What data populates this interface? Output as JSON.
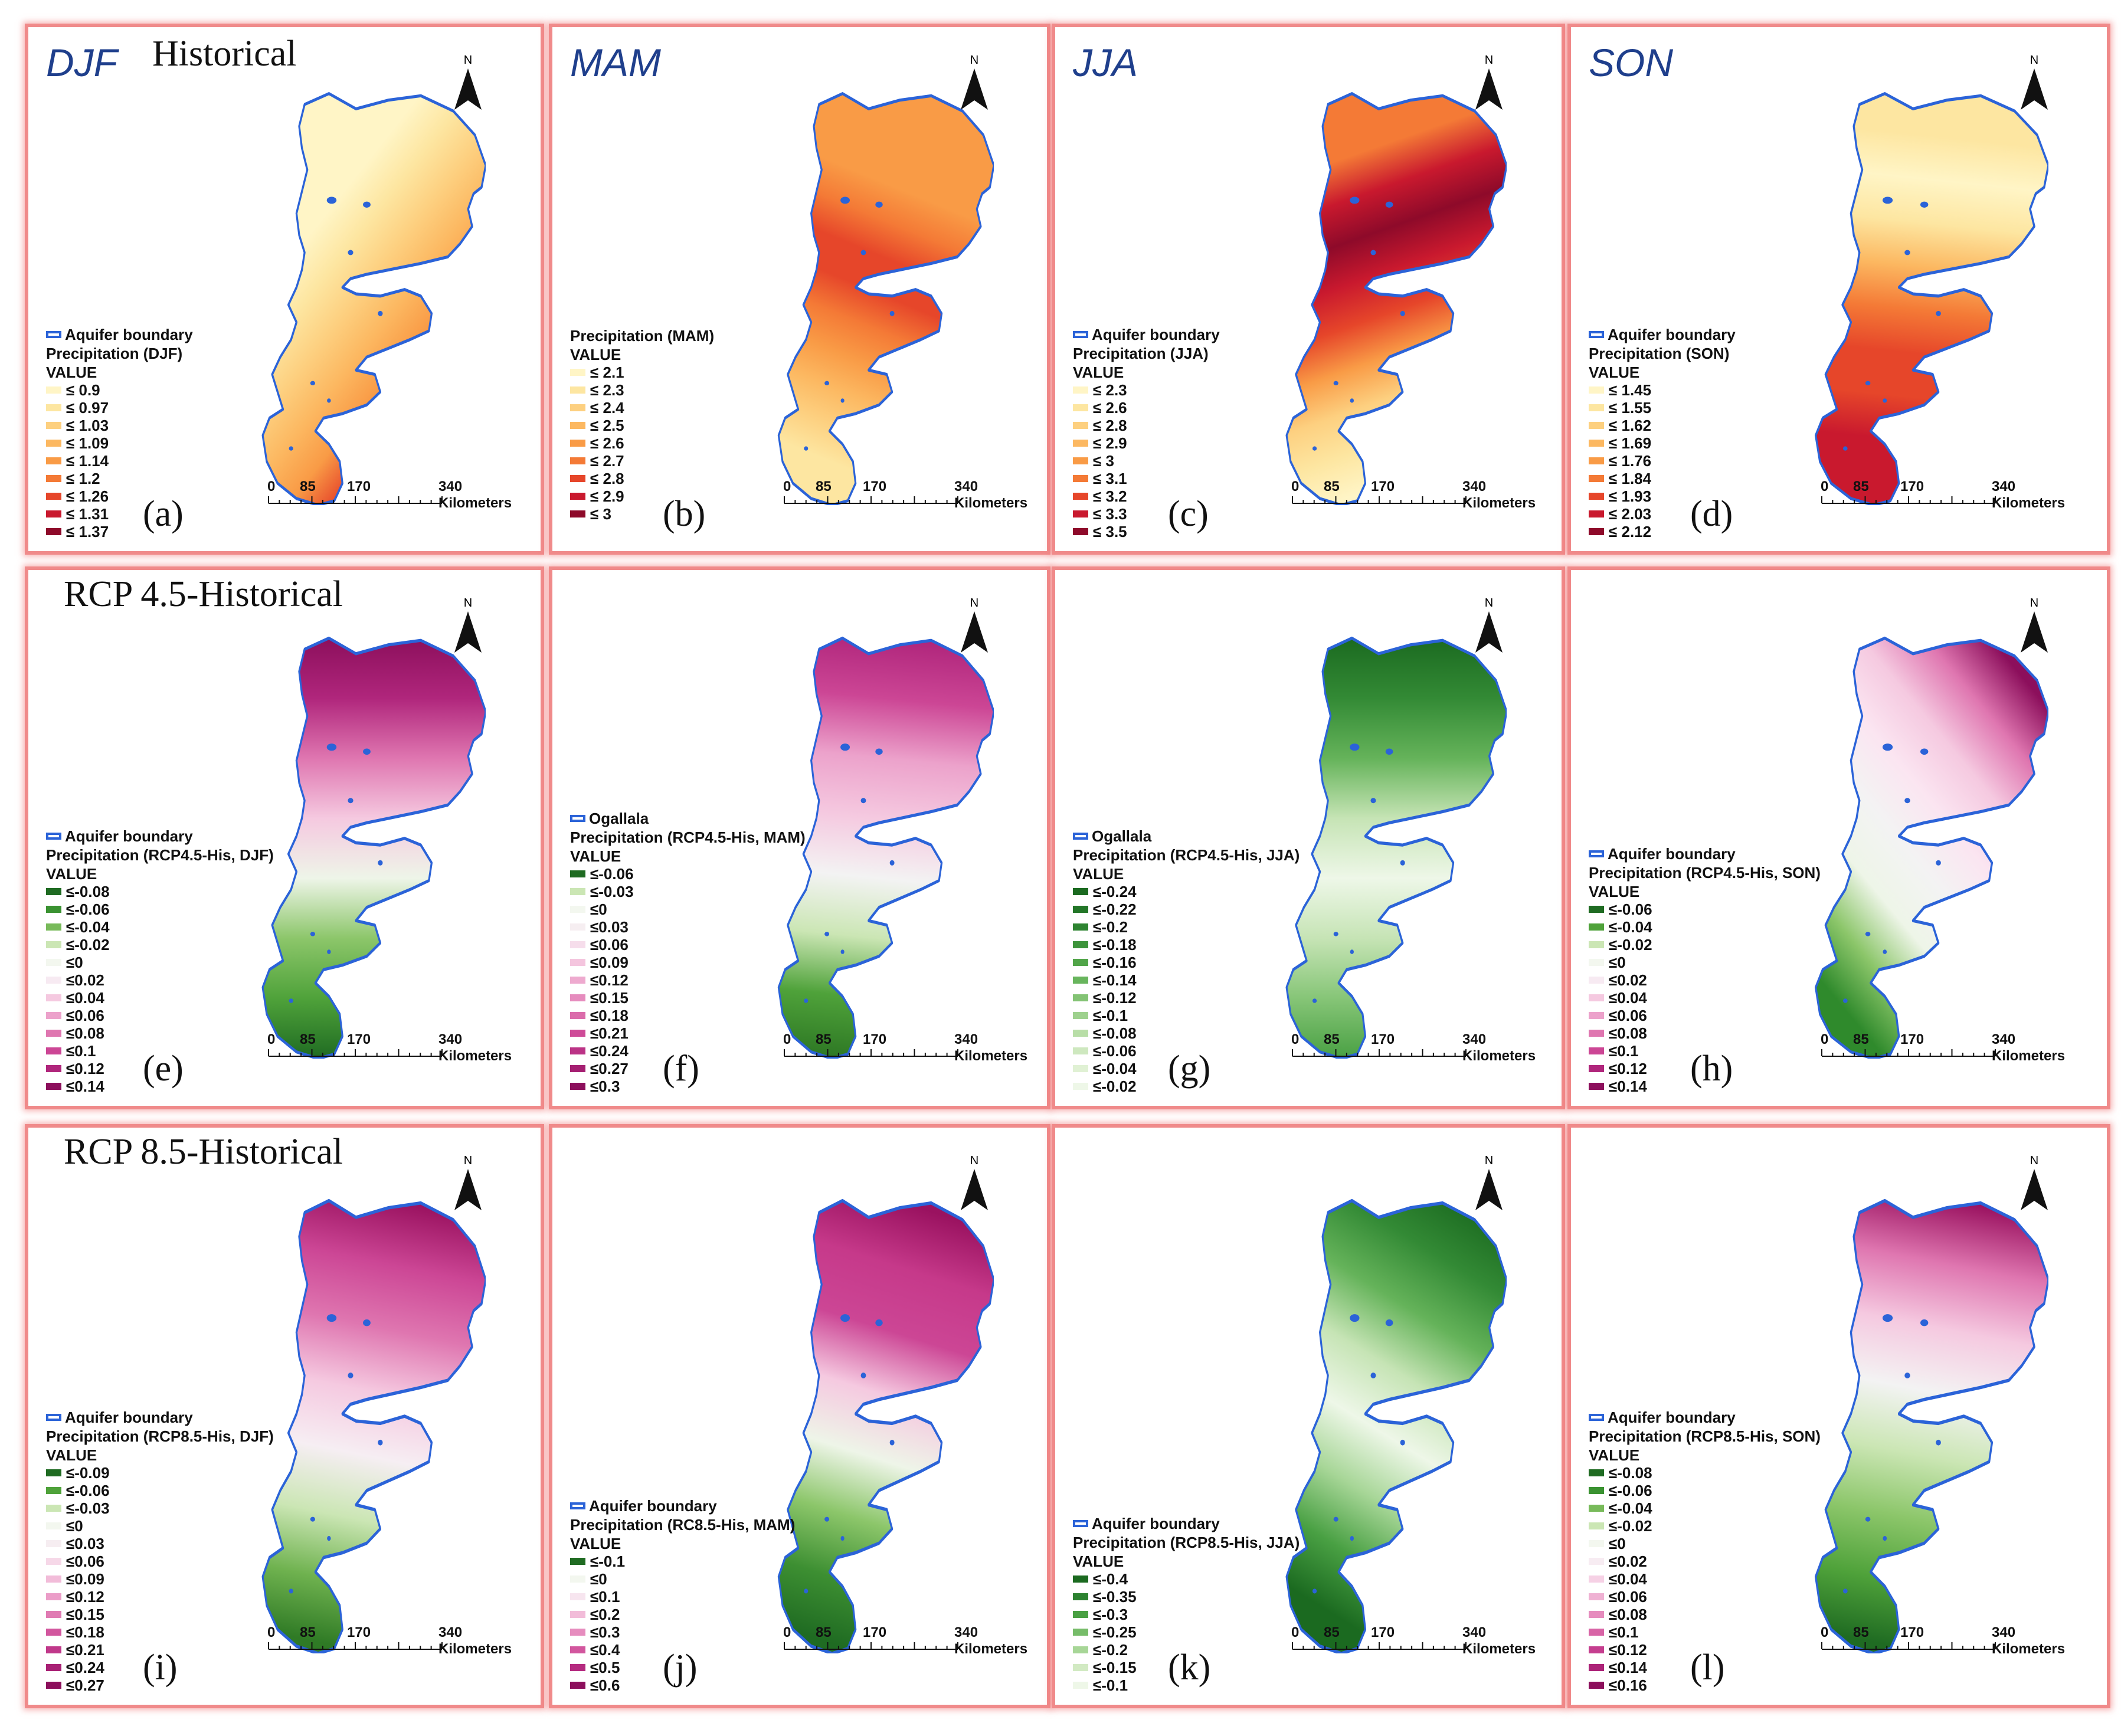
{
  "common": {
    "boundary_label": "Aquifer boundary",
    "value_label": "VALUE",
    "north_label": "N",
    "scale": [
      "0",
      "85",
      "170",
      "340 Kilometers"
    ],
    "boundary_color": "#2b63d8"
  },
  "panels": [
    {
      "label": "(a)",
      "season": "DJF",
      "period_title": "Historical",
      "legend_boundary": "Aquifer boundary",
      "legend_title": "Precipitation (DJF)",
      "palette": "warm",
      "gradient": "djf",
      "classes": [
        "≤ 0.9",
        "≤ 0.97",
        "≤ 1.03",
        "≤ 1.09",
        "≤ 1.14",
        "≤ 1.2",
        "≤ 1.26",
        "≤ 1.31",
        "≤ 1.37"
      ]
    },
    {
      "label": "(b)",
      "season": "MAM",
      "period_title": "",
      "legend_boundary": "",
      "legend_title": "Precipitation (MAM)",
      "palette": "warm",
      "gradient": "mam",
      "classes": [
        "≤ 2.1",
        "≤ 2.3",
        "≤ 2.4",
        "≤ 2.5",
        "≤ 2.6",
        "≤ 2.7",
        "≤ 2.8",
        "≤ 2.9",
        "≤ 3"
      ]
    },
    {
      "label": "(c)",
      "season": "JJA",
      "period_title": "",
      "legend_boundary": "Aquifer boundary",
      "legend_title": "Precipitation (JJA)",
      "palette": "warm",
      "gradient": "jja",
      "classes": [
        "≤ 2.3",
        "≤ 2.6",
        "≤ 2.8",
        "≤ 2.9",
        "≤ 3",
        "≤ 3.1",
        "≤ 3.2",
        "≤ 3.3",
        "≤ 3.5"
      ]
    },
    {
      "label": "(d)",
      "season": "SON",
      "period_title": "",
      "legend_boundary": "Aquifer boundary",
      "legend_title": "Precipitation (SON)",
      "palette": "warm",
      "gradient": "son",
      "classes": [
        "≤ 1.45",
        "≤ 1.55",
        "≤ 1.62",
        "≤ 1.69",
        "≤ 1.76",
        "≤ 1.84",
        "≤ 1.93",
        "≤ 2.03",
        "≤ 2.12"
      ]
    },
    {
      "label": "(e)",
      "season": "",
      "period_title": "RCP 4.5-Historical",
      "legend_boundary": "Aquifer boundary",
      "legend_title": "Precipitation (RCP4.5-His, DJF)",
      "palette": "diverging",
      "gradient": "e",
      "classes": [
        "≤-0.08",
        "≤-0.06",
        "≤-0.04",
        "≤-0.02",
        "≤0",
        "≤0.02",
        "≤0.04",
        "≤0.06",
        "≤0.08",
        "≤0.1",
        "≤0.12",
        "≤0.14"
      ]
    },
    {
      "label": "(f)",
      "season": "",
      "period_title": "",
      "legend_boundary": "Ogallala",
      "legend_title": "Precipitation (RCP4.5-His, MAM)",
      "palette": "diverging",
      "gradient": "f",
      "classes": [
        "≤-0.06",
        "≤-0.03",
        "≤0",
        "≤0.03",
        "≤0.06",
        "≤0.09",
        "≤0.12",
        "≤0.15",
        "≤0.18",
        "≤0.21",
        "≤0.24",
        "≤0.27",
        "≤0.3"
      ]
    },
    {
      "label": "(g)",
      "season": "",
      "period_title": "",
      "legend_boundary": "Ogallala",
      "legend_title": "Precipitation (RCP4.5-His, JJA)",
      "palette": "greens_desc",
      "gradient": "g",
      "classes": [
        "≤-0.24",
        "≤-0.22",
        "≤-0.2",
        "≤-0.18",
        "≤-0.16",
        "≤-0.14",
        "≤-0.12",
        "≤-0.1",
        "≤-0.08",
        "≤-0.06",
        "≤-0.04",
        "≤-0.02"
      ]
    },
    {
      "label": "(h)",
      "season": "",
      "period_title": "",
      "legend_boundary": "Aquifer boundary",
      "legend_title": "Precipitation (RCP4.5-His, SON)",
      "palette": "diverging",
      "gradient": "h",
      "classes": [
        "≤-0.06",
        "≤-0.04",
        "≤-0.02",
        "≤0",
        "≤0.02",
        "≤0.04",
        "≤0.06",
        "≤0.08",
        "≤0.1",
        "≤0.12",
        "≤0.14"
      ]
    },
    {
      "label": "(i)",
      "season": "",
      "period_title": "RCP 8.5-Historical",
      "legend_boundary": "Aquifer boundary",
      "legend_title": "Precipitation (RCP8.5-His, DJF)",
      "palette": "diverging",
      "gradient": "i",
      "classes": [
        "≤-0.09",
        "≤-0.06",
        "≤-0.03",
        "≤0",
        "≤0.03",
        "≤0.06",
        "≤0.09",
        "≤0.12",
        "≤0.15",
        "≤0.18",
        "≤0.21",
        "≤0.24",
        "≤0.27"
      ]
    },
    {
      "label": "(j)",
      "season": "",
      "period_title": "",
      "legend_boundary": "Aquifer boundary",
      "legend_title": "Precipitation (RC8.5-His, MAM)",
      "palette": "diverging",
      "gradient": "j",
      "classes": [
        "≤-0.1",
        "≤0",
        "≤0.1",
        "≤0.2",
        "≤0.3",
        "≤0.4",
        "≤0.5",
        "≤0.6"
      ]
    },
    {
      "label": "(k)",
      "season": "",
      "period_title": "",
      "legend_boundary": "Aquifer boundary",
      "legend_title": "Precipitation (RCP8.5-His, JJA)",
      "palette": "greens_desc",
      "gradient": "k",
      "classes": [
        "≤-0.4",
        "≤-0.35",
        "≤-0.3",
        "≤-0.25",
        "≤-0.2",
        "≤-0.15",
        "≤-0.1"
      ]
    },
    {
      "label": "(l)",
      "season": "",
      "period_title": "",
      "legend_boundary": "Aquifer boundary",
      "legend_title": "Precipitation (RCP8.5-His, SON)",
      "palette": "diverging",
      "gradient": "l",
      "classes": [
        "≤-0.08",
        "≤-0.06",
        "≤-0.04",
        "≤-0.02",
        "≤0",
        "≤0.02",
        "≤0.04",
        "≤0.06",
        "≤0.08",
        "≤0.1",
        "≤0.12",
        "≤0.14",
        "≤0.16"
      ]
    }
  ]
}
